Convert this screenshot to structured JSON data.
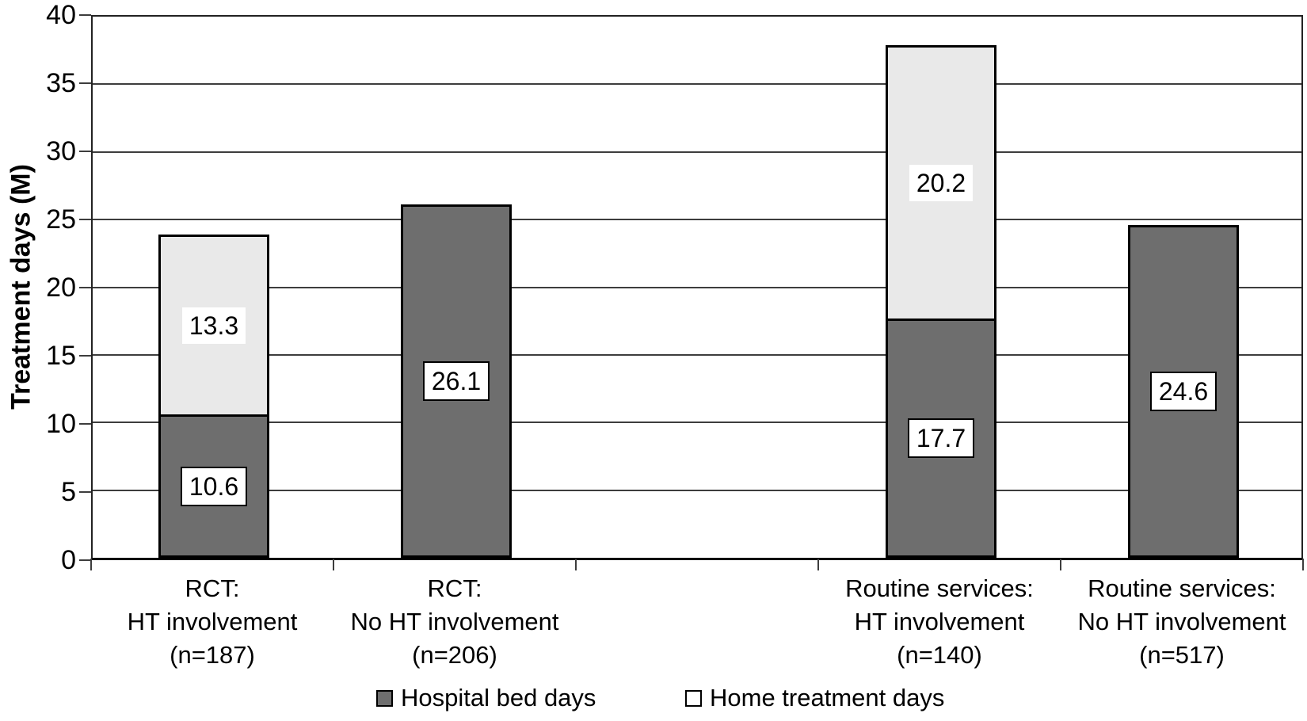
{
  "chart_data": {
    "type": "bar",
    "stacked": true,
    "title": "",
    "xlabel": "",
    "ylabel": "Treatment days (M)",
    "ylim": [
      0,
      40
    ],
    "yticks": [
      0,
      5,
      10,
      15,
      20,
      25,
      30,
      35,
      40
    ],
    "grid": true,
    "legend_position": "bottom",
    "n_slots": 5,
    "categories": [
      {
        "lines": [
          "RCT:",
          "HT involvement",
          "(n=187)"
        ],
        "slot": 0
      },
      {
        "lines": [
          "RCT:",
          "No HT involvement",
          "(n=206)"
        ],
        "slot": 1
      },
      {
        "lines": [
          "Routine services:",
          "HT involvement",
          "(n=140)"
        ],
        "slot": 3
      },
      {
        "lines": [
          "Routine services:",
          "No HT involvement",
          "(n=517)"
        ],
        "slot": 4
      }
    ],
    "series": [
      {
        "name": "Hospital bed days",
        "color": "#6e6e6e",
        "label_border": true,
        "values": [
          10.6,
          26.1,
          17.7,
          24.6
        ]
      },
      {
        "name": "Home treatment days",
        "color": "#e9e9e9",
        "label_border": false,
        "values": [
          13.3,
          null,
          20.2,
          null
        ]
      }
    ],
    "colors": {
      "gridline": "#3d3d3d",
      "axis": "#222222",
      "bar_border": "#000000",
      "label_bg": "#ffffff",
      "text": "#000000"
    }
  }
}
